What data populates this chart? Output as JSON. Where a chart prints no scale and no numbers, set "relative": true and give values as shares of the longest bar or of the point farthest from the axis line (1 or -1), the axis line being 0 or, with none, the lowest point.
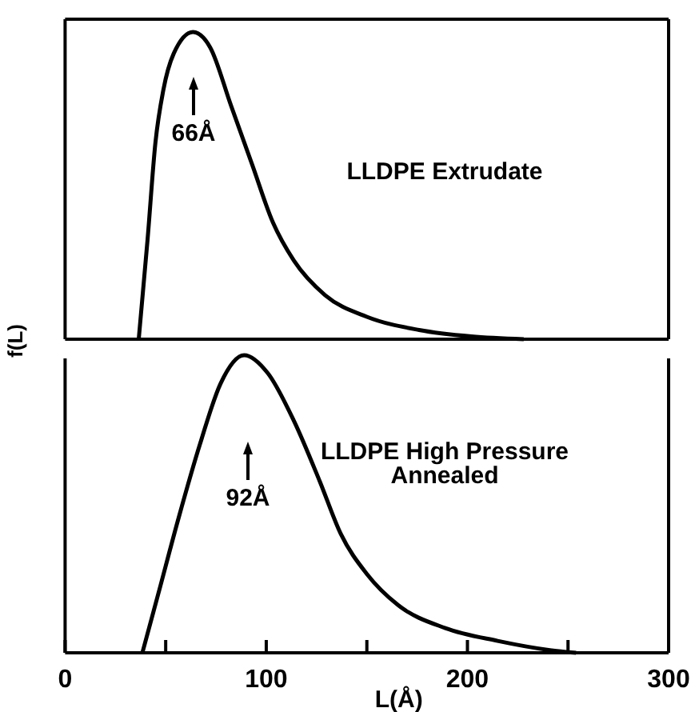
{
  "chart_data": [
    {
      "type": "line",
      "relative": true,
      "ylabel": "f(L)",
      "xlim": [
        0,
        300
      ],
      "line_style": "solid",
      "x": [
        36.6,
        41,
        44.9,
        48.8,
        54,
        63.6,
        72.1,
        82.5,
        92.9,
        103.3,
        113.7,
        129.3,
        150,
        176,
        202,
        228
      ],
      "series": [
        {
          "color": "#000000",
          "values": [
            0,
            0.325,
            0.64,
            0.81,
            0.93,
            1,
            0.95,
            0.76,
            0.57,
            0.38,
            0.256,
            0.143,
            0.073,
            0.03,
            0.009,
            0
          ]
        }
      ],
      "annotations": [
        "66Å",
        "LLDPE Extrudate"
      ]
    },
    {
      "type": "line",
      "relative": true,
      "xlabel": "L(Å)",
      "xlim": [
        0,
        300
      ],
      "xticks": [
        0,
        {
          "value": 50,
          "label": null
        },
        100,
        {
          "value": 150,
          "label": null
        },
        200,
        {
          "value": 250,
          "label": null
        },
        300
      ],
      "line_style": "solid",
      "x": [
        38.4,
        46.2,
        56.5,
        67,
        77.3,
        89,
        100.7,
        113.7,
        126.6,
        137,
        150,
        165.6,
        189,
        215,
        241,
        254
      ],
      "series": [
        {
          "color": "#000000",
          "values": [
            0,
            0.195,
            0.455,
            0.7,
            0.905,
            1,
            0.94,
            0.78,
            0.576,
            0.4,
            0.265,
            0.16,
            0.083,
            0.04,
            0.009,
            0
          ]
        }
      ],
      "annotations": [
        "92Å",
        "LLDPE High Pressure\nAnnealed"
      ]
    }
  ]
}
